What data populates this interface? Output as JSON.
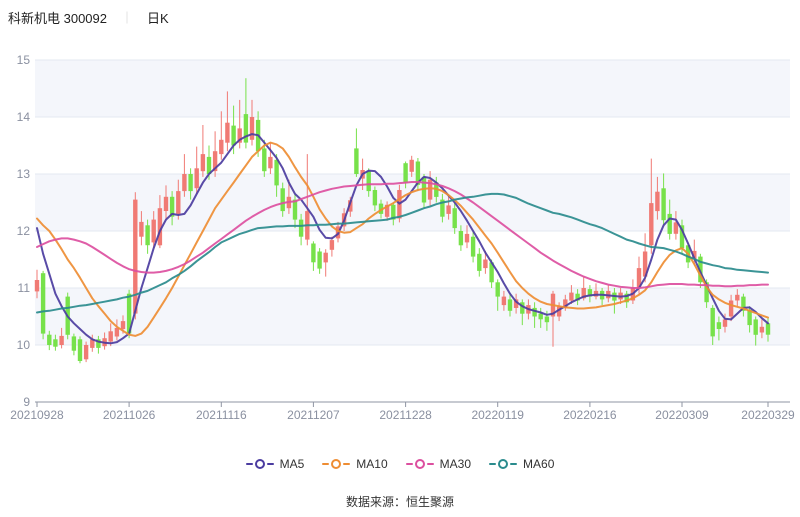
{
  "header": {
    "title": "科新机电 300092",
    "separator": "｜",
    "period": "日K"
  },
  "legend": [
    {
      "label": "MA5",
      "color": "#4b3ca0"
    },
    {
      "label": "MA10",
      "color": "#ee8d33"
    },
    {
      "label": "MA30",
      "color": "#dc4f9f"
    },
    {
      "label": "MA60",
      "color": "#2a8b8d"
    }
  ],
  "footer": {
    "source": "数据来源：恒生聚源"
  },
  "chart_data": {
    "type": "candlestick",
    "title": "科新机电 300092 日K",
    "y_axis": {
      "min": 9,
      "max": 15,
      "ticks": [
        9,
        10,
        11,
        12,
        13,
        14,
        15
      ]
    },
    "x_axis": {
      "tick_labels": [
        "20210928",
        "20211026",
        "20211116",
        "20211207",
        "20211228",
        "20220119",
        "20220216",
        "20220309",
        "20220329"
      ],
      "tick_indices": [
        0,
        15,
        30,
        45,
        60,
        75,
        90,
        105,
        119
      ]
    },
    "colors": {
      "up": "#f07a74",
      "down": "#77e14a",
      "band": "#f4f6fb",
      "grid": "#e3e8f2",
      "axis": "#8f95a3"
    },
    "bands": [
      [
        15,
        14
      ],
      [
        13,
        12
      ],
      [
        11,
        10
      ]
    ],
    "candles": [
      [
        10.94,
        11.14,
        11.32,
        10.82
      ],
      [
        11.26,
        10.2,
        11.3,
        10.1
      ],
      [
        10.18,
        10.0,
        10.25,
        9.91
      ],
      [
        10.1,
        9.97,
        10.18,
        9.9
      ],
      [
        10.0,
        10.16,
        10.3,
        9.94
      ],
      [
        10.85,
        10.18,
        10.92,
        10.1
      ],
      [
        10.15,
        9.9,
        10.2,
        9.82
      ],
      [
        10.1,
        9.72,
        10.15,
        9.68
      ],
      [
        9.75,
        10.0,
        10.06,
        9.7
      ],
      [
        9.95,
        10.1,
        10.18,
        9.88
      ],
      [
        10.1,
        9.95,
        10.16,
        9.85
      ],
      [
        9.98,
        10.12,
        10.22,
        9.92
      ],
      [
        10.06,
        10.24,
        10.38,
        9.98
      ],
      [
        10.15,
        10.3,
        10.45,
        10.08
      ],
      [
        10.28,
        10.42,
        10.52,
        10.2
      ],
      [
        10.9,
        10.2,
        10.97,
        10.12
      ],
      [
        10.55,
        12.55,
        12.68,
        10.45
      ],
      [
        11.9,
        12.16,
        12.35,
        11.75
      ],
      [
        12.1,
        11.75,
        12.2,
        11.6
      ],
      [
        11.8,
        12.2,
        12.35,
        11.7
      ],
      [
        11.75,
        12.4,
        12.63,
        11.7
      ],
      [
        12.35,
        12.6,
        12.8,
        12.2
      ],
      [
        12.6,
        12.25,
        12.7,
        12.1
      ],
      [
        12.3,
        12.7,
        12.9,
        12.2
      ],
      [
        12.7,
        13.0,
        13.35,
        12.6
      ],
      [
        13.0,
        12.7,
        13.1,
        12.55
      ],
      [
        12.75,
        13.1,
        13.48,
        12.65
      ],
      [
        13.05,
        13.35,
        13.86,
        12.95
      ],
      [
        13.3,
        13.0,
        13.5,
        12.9
      ],
      [
        13.05,
        13.4,
        13.75,
        12.95
      ],
      [
        13.35,
        13.6,
        14.1,
        13.25
      ],
      [
        13.55,
        13.9,
        14.45,
        13.4
      ],
      [
        13.85,
        13.5,
        14.2,
        13.35
      ],
      [
        13.55,
        13.8,
        14.3,
        13.45
      ],
      [
        14.05,
        13.55,
        14.68,
        13.45
      ],
      [
        13.6,
        14.0,
        14.3,
        13.5
      ],
      [
        13.95,
        13.4,
        14.1,
        13.3
      ],
      [
        13.45,
        13.05,
        13.6,
        12.95
      ],
      [
        13.1,
        13.3,
        13.55,
        13.0
      ],
      [
        13.25,
        12.8,
        13.35,
        12.6
      ],
      [
        12.75,
        12.35,
        12.85,
        12.25
      ],
      [
        12.4,
        12.6,
        12.9,
        12.3
      ],
      [
        12.55,
        12.2,
        12.65,
        12.05
      ],
      [
        12.2,
        11.9,
        12.3,
        11.75
      ],
      [
        11.85,
        12.35,
        13.35,
        11.75
      ],
      [
        11.78,
        11.45,
        11.82,
        11.3
      ],
      [
        11.64,
        11.34,
        11.7,
        11.25
      ],
      [
        11.45,
        11.62,
        11.68,
        11.2
      ],
      [
        11.67,
        11.84,
        11.9,
        11.55
      ],
      [
        11.87,
        12.08,
        12.16,
        11.8
      ],
      [
        12.08,
        12.31,
        12.4,
        12.0
      ],
      [
        12.34,
        12.54,
        12.6,
        12.25
      ],
      [
        13.45,
        13.0,
        13.8,
        12.95
      ],
      [
        12.92,
        13.07,
        13.27,
        12.72
      ],
      [
        13.05,
        12.7,
        13.1,
        12.6
      ],
      [
        12.72,
        12.45,
        12.78,
        12.35
      ],
      [
        12.48,
        12.3,
        12.55,
        12.22
      ],
      [
        12.25,
        12.46,
        12.52,
        12.18
      ],
      [
        12.46,
        12.2,
        12.5,
        12.1
      ],
      [
        12.22,
        12.72,
        12.81,
        12.15
      ],
      [
        13.19,
        12.85,
        13.22,
        12.75
      ],
      [
        13.04,
        13.25,
        13.32,
        12.95
      ],
      [
        13.22,
        12.81,
        13.28,
        12.7
      ],
      [
        12.95,
        12.5,
        13.0,
        12.4
      ],
      [
        12.55,
        12.9,
        13.05,
        12.45
      ],
      [
        12.85,
        12.6,
        12.95,
        12.5
      ],
      [
        12.55,
        12.25,
        12.65,
        12.15
      ],
      [
        12.3,
        12.45,
        12.6,
        12.2
      ],
      [
        12.4,
        12.05,
        12.5,
        11.95
      ],
      [
        12.0,
        11.75,
        12.1,
        11.65
      ],
      [
        11.8,
        11.95,
        12.1,
        11.7
      ],
      [
        11.9,
        11.55,
        12.0,
        11.45
      ],
      [
        11.6,
        11.3,
        11.7,
        11.2
      ],
      [
        11.35,
        11.5,
        11.65,
        11.25
      ],
      [
        11.45,
        11.1,
        11.5,
        11.0
      ],
      [
        11.1,
        10.85,
        11.15,
        10.6
      ],
      [
        10.7,
        10.85,
        10.95,
        10.6
      ],
      [
        10.8,
        10.6,
        10.9,
        10.5
      ],
      [
        10.65,
        10.8,
        10.9,
        10.55
      ],
      [
        10.75,
        10.55,
        10.8,
        10.35
      ],
      [
        10.55,
        10.7,
        10.8,
        10.45
      ],
      [
        10.65,
        10.5,
        10.75,
        10.3
      ],
      [
        10.55,
        10.45,
        10.65,
        10.3
      ],
      [
        10.5,
        10.4,
        10.6,
        10.25
      ],
      [
        10.5,
        10.9,
        10.95,
        9.97
      ],
      [
        10.5,
        10.68,
        10.75,
        10.42
      ],
      [
        10.65,
        10.8,
        10.88,
        10.6
      ],
      [
        10.78,
        10.92,
        11.05,
        10.72
      ],
      [
        10.9,
        10.78,
        10.98,
        10.7
      ],
      [
        10.82,
        11.0,
        11.2,
        10.78
      ],
      [
        10.98,
        10.85,
        11.05,
        10.75
      ],
      [
        10.85,
        10.95,
        11.08,
        10.8
      ],
      [
        10.95,
        10.8,
        11.0,
        10.7
      ],
      [
        10.82,
        10.95,
        11.05,
        10.75
      ],
      [
        10.92,
        10.78,
        11.0,
        10.55
      ],
      [
        10.8,
        10.92,
        11.0,
        10.72
      ],
      [
        10.9,
        10.75,
        10.95,
        10.65
      ],
      [
        10.78,
        11.0,
        11.15,
        10.72
      ],
      [
        11.0,
        11.35,
        11.55,
        10.9
      ],
      [
        11.2,
        11.64,
        11.96,
        11.1
      ],
      [
        11.75,
        12.49,
        13.27,
        11.6
      ],
      [
        12.35,
        12.69,
        12.95,
        12.2
      ],
      [
        12.75,
        12.19,
        13.01,
        12.1
      ],
      [
        12.3,
        11.95,
        12.55,
        11.85
      ],
      [
        11.95,
        12.15,
        12.35,
        11.85
      ],
      [
        12.1,
        11.7,
        12.2,
        11.6
      ],
      [
        11.75,
        11.45,
        11.8,
        11.35
      ],
      [
        11.5,
        11.65,
        11.85,
        11.4
      ],
      [
        11.55,
        11.1,
        11.6,
        11.0
      ],
      [
        11.1,
        10.75,
        11.15,
        10.65
      ],
      [
        10.65,
        10.15,
        10.7,
        10.0
      ],
      [
        10.4,
        10.28,
        10.5,
        10.08
      ],
      [
        10.32,
        10.45,
        10.55,
        10.22
      ],
      [
        10.5,
        10.78,
        10.88,
        10.42
      ],
      [
        10.78,
        10.88,
        10.98,
        10.68
      ],
      [
        10.85,
        10.6,
        10.9,
        10.5
      ],
      [
        10.62,
        10.35,
        10.68,
        10.22
      ],
      [
        10.45,
        10.18,
        10.5,
        9.99
      ],
      [
        10.22,
        10.32,
        10.45,
        10.12
      ],
      [
        10.38,
        10.18,
        10.47,
        10.06
      ]
    ],
    "series": [
      {
        "name": "MA5",
        "color": "#4b3ca0",
        "values": [
          12.05,
          11.6,
          11.25,
          10.9,
          10.68,
          10.5,
          10.38,
          10.28,
          10.18,
          10.1,
          10.06,
          10.04,
          10.03,
          10.05,
          10.12,
          10.2,
          10.6,
          11.0,
          11.35,
          11.7,
          12.0,
          12.2,
          12.3,
          12.28,
          12.3,
          12.45,
          12.65,
          12.85,
          13.0,
          13.1,
          13.2,
          13.35,
          13.5,
          13.6,
          13.66,
          13.7,
          13.68,
          13.55,
          13.42,
          13.28,
          13.1,
          12.85,
          12.65,
          12.55,
          12.4,
          12.25,
          12.02,
          11.88,
          11.87,
          11.95,
          12.18,
          12.5,
          12.8,
          13.0,
          13.06,
          13.05,
          12.95,
          12.78,
          12.58,
          12.48,
          12.55,
          12.7,
          12.85,
          12.95,
          12.93,
          12.85,
          12.75,
          12.62,
          12.5,
          12.35,
          12.18,
          12.0,
          11.82,
          11.62,
          11.45,
          11.28,
          11.08,
          10.9,
          10.76,
          10.68,
          10.63,
          10.6,
          10.57,
          10.53,
          10.55,
          10.62,
          10.68,
          10.75,
          10.8,
          10.85,
          10.87,
          10.88,
          10.88,
          10.87,
          10.86,
          10.85,
          10.86,
          10.9,
          11.0,
          11.18,
          11.5,
          11.85,
          12.1,
          12.22,
          12.2,
          12.02,
          11.78,
          11.52,
          11.28,
          11.05,
          10.82,
          10.6,
          10.46,
          10.45,
          10.55,
          10.65,
          10.66,
          10.58,
          10.47,
          10.38
        ]
      },
      {
        "name": "MA10",
        "color": "#ee8d33",
        "values": [
          12.22,
          12.1,
          12.0,
          11.85,
          11.68,
          11.5,
          11.35,
          11.18,
          11.0,
          10.82,
          10.68,
          10.55,
          10.42,
          10.32,
          10.25,
          10.18,
          10.16,
          10.2,
          10.32,
          10.48,
          10.65,
          10.82,
          11.0,
          11.2,
          11.4,
          11.6,
          11.8,
          12.0,
          12.2,
          12.4,
          12.55,
          12.7,
          12.85,
          13.0,
          13.15,
          13.3,
          13.4,
          13.5,
          13.55,
          13.52,
          13.45,
          13.3,
          13.12,
          12.95,
          12.8,
          12.6,
          12.38,
          12.22,
          12.08,
          12.0,
          11.97,
          11.98,
          12.05,
          12.12,
          12.22,
          12.3,
          12.37,
          12.43,
          12.49,
          12.56,
          12.63,
          12.68,
          12.72,
          12.74,
          12.75,
          12.74,
          12.7,
          12.63,
          12.54,
          12.44,
          12.32,
          12.2,
          12.06,
          11.92,
          11.78,
          11.62,
          11.45,
          11.28,
          11.12,
          11.0,
          10.9,
          10.82,
          10.76,
          10.72,
          10.7,
          10.68,
          10.66,
          10.65,
          10.64,
          10.64,
          10.65,
          10.66,
          10.68,
          10.7,
          10.72,
          10.75,
          10.78,
          10.82,
          10.88,
          10.96,
          11.1,
          11.28,
          11.45,
          11.58,
          11.66,
          11.7,
          11.6,
          11.42,
          11.22,
          11.02,
          10.88,
          10.8,
          10.74,
          10.7,
          10.67,
          10.64,
          10.6,
          10.56,
          10.52,
          10.48
        ]
      },
      {
        "name": "MA30",
        "color": "#dc4f9f",
        "values": [
          11.72,
          11.77,
          11.82,
          11.85,
          11.87,
          11.87,
          11.85,
          11.82,
          11.78,
          11.72,
          11.65,
          11.58,
          11.51,
          11.44,
          11.38,
          11.33,
          11.3,
          11.28,
          11.27,
          11.27,
          11.28,
          11.3,
          11.33,
          11.37,
          11.42,
          11.48,
          11.55,
          11.62,
          11.7,
          11.78,
          11.86,
          11.94,
          12.02,
          12.1,
          12.18,
          12.25,
          12.31,
          12.37,
          12.42,
          12.46,
          12.49,
          12.51,
          12.52,
          12.56,
          12.6,
          12.64,
          12.68,
          12.71,
          12.74,
          12.76,
          12.78,
          12.79,
          12.8,
          12.81,
          12.82,
          12.82,
          12.82,
          12.83,
          12.83,
          12.84,
          12.85,
          12.86,
          12.86,
          12.85,
          12.84,
          12.82,
          12.79,
          12.75,
          12.7,
          12.64,
          12.57,
          12.5,
          12.42,
          12.34,
          12.26,
          12.18,
          12.1,
          12.02,
          11.94,
          11.86,
          11.78,
          11.7,
          11.62,
          11.55,
          11.48,
          11.42,
          11.36,
          11.3,
          11.25,
          11.2,
          11.16,
          11.12,
          11.09,
          11.06,
          11.04,
          11.02,
          11.01,
          11.0,
          11.0,
          11.01,
          11.03,
          11.05,
          11.06,
          11.07,
          11.07,
          11.07,
          11.06,
          11.06,
          11.05,
          11.05,
          11.04,
          11.04,
          11.03,
          11.03,
          11.04,
          11.04,
          11.05,
          11.05,
          11.06,
          11.06
        ]
      },
      {
        "name": "MA60",
        "color": "#2a8b8d",
        "values": [
          10.57,
          10.59,
          10.6,
          10.62,
          10.64,
          10.65,
          10.67,
          10.69,
          10.7,
          10.72,
          10.74,
          10.76,
          10.78,
          10.8,
          10.83,
          10.85,
          10.88,
          10.92,
          10.95,
          11.0,
          11.05,
          11.1,
          11.17,
          11.23,
          11.3,
          11.38,
          11.47,
          11.55,
          11.63,
          11.72,
          11.8,
          11.85,
          11.9,
          11.95,
          11.98,
          12.02,
          12.05,
          12.06,
          12.07,
          12.08,
          12.08,
          12.09,
          12.09,
          12.09,
          12.1,
          12.1,
          12.11,
          12.11,
          12.12,
          12.13,
          12.13,
          12.14,
          12.15,
          12.16,
          12.17,
          12.18,
          12.19,
          12.2,
          12.23,
          12.25,
          12.28,
          12.32,
          12.36,
          12.4,
          12.43,
          12.47,
          12.5,
          12.52,
          12.55,
          12.57,
          12.59,
          12.6,
          12.62,
          12.64,
          12.65,
          12.65,
          12.64,
          12.61,
          12.58,
          12.53,
          12.48,
          12.44,
          12.4,
          12.36,
          12.32,
          12.3,
          12.27,
          12.24,
          12.2,
          12.16,
          12.12,
          12.09,
          12.05,
          12.0,
          11.95,
          11.9,
          11.85,
          11.82,
          11.78,
          11.75,
          11.72,
          11.71,
          11.7,
          11.67,
          11.64,
          11.6,
          11.55,
          11.51,
          11.46,
          11.43,
          11.4,
          11.38,
          11.35,
          11.34,
          11.32,
          11.31,
          11.3,
          11.29,
          11.28,
          11.27
        ]
      }
    ]
  }
}
